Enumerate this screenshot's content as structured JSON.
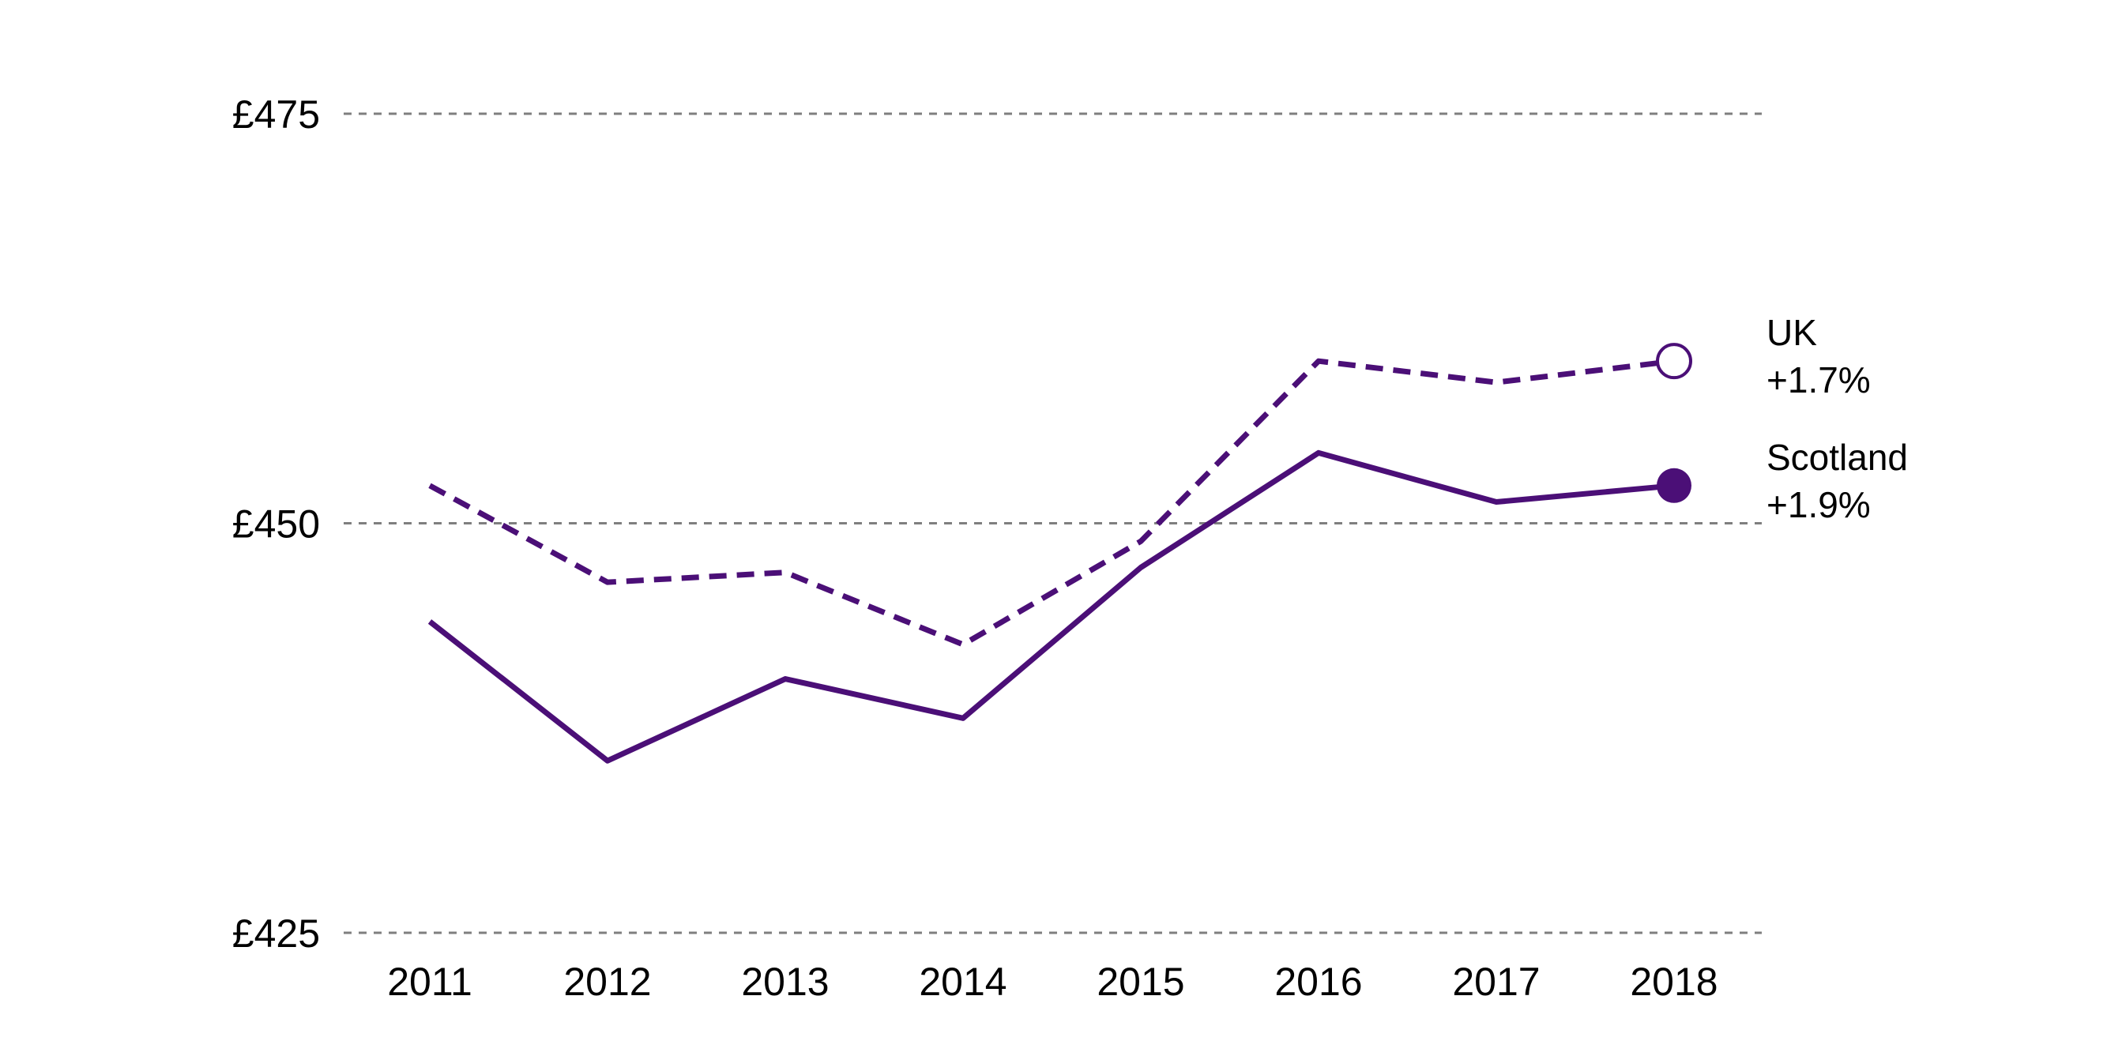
{
  "chart_data": {
    "type": "line",
    "title": "",
    "xlabel": "",
    "ylabel": "",
    "categories": [
      "2011",
      "2012",
      "2013",
      "2014",
      "2015",
      "2016",
      "2017",
      "2018"
    ],
    "ylim": [
      425,
      475
    ],
    "yticks": [
      425,
      450,
      475
    ],
    "ytick_labels": [
      "£425",
      "£450",
      "£475"
    ],
    "grid": "horizontal dashed",
    "series": [
      {
        "name": "UK",
        "change_label": "+1.7%",
        "line_style": "dashed",
        "marker": "open-circle",
        "color": "#4b0f77",
        "values": [
          452.3,
          446.4,
          447.0,
          442.6,
          448.9,
          459.9,
          458.6,
          459.9
        ]
      },
      {
        "name": "Scotland",
        "change_label": "+1.9%",
        "line_style": "solid",
        "marker": "filled-circle",
        "color": "#4b0f77",
        "values": [
          444.0,
          435.5,
          440.5,
          438.1,
          447.3,
          454.3,
          451.3,
          452.3
        ]
      }
    ]
  }
}
